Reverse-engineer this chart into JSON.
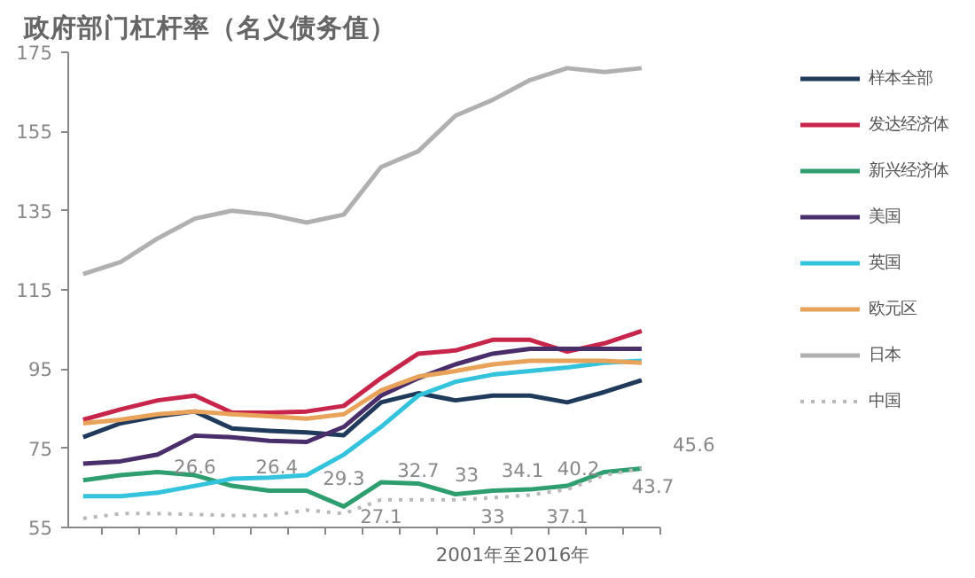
{
  "chart_data": {
    "type": "line",
    "title": "政府部门杠杆率（名义债务值）",
    "xlabel": "2001年至2016年",
    "categories": [
      null,
      null,
      null,
      null,
      null,
      null,
      null,
      null,
      null,
      null,
      null,
      null,
      null,
      null,
      null,
      null
    ],
    "ylim": [
      55,
      175
    ],
    "yticks": [
      55,
      75,
      95,
      115,
      135,
      155,
      175
    ],
    "legend": "right",
    "series": [
      {
        "name": "样本全部",
        "color": "#1f3a5a",
        "values": [
          77.8,
          81.3,
          83.1,
          84.3,
          80,
          79.4,
          79,
          78.3,
          86.6,
          88.9,
          87.1,
          88.3,
          88.3,
          86.6,
          89.2,
          92.2
        ]
      },
      {
        "name": "发达经济体",
        "color": "#c8254a",
        "values": [
          82.2,
          84.8,
          87.1,
          88.3,
          84,
          84,
          84.3,
          85.7,
          92.7,
          98.9,
          99.7,
          102.4,
          102.4,
          99.4,
          101.5,
          104.6
        ]
      },
      {
        "name": "新兴经济体",
        "color": "#2e9e6e",
        "values": [
          66.9,
          68.2,
          69,
          68.2,
          65.5,
          64.3,
          64.3,
          60.3,
          66.4,
          66.1,
          63.4,
          64.3,
          64.6,
          65.5,
          69,
          69.9
        ]
      },
      {
        "name": "美国",
        "color": "#4a2d6b",
        "values": [
          71.1,
          71.7,
          73.4,
          78.2,
          77.8,
          76.9,
          76.6,
          80.4,
          88.3,
          92.7,
          96.2,
          98.9,
          100.1,
          100.1,
          100.1,
          100.1
        ]
      },
      {
        "name": "英国",
        "color": "#33c3dc",
        "values": [
          62.9,
          62.9,
          63.8,
          65.5,
          67.3,
          67.6,
          68.2,
          73.4,
          80.4,
          88.3,
          91.8,
          93.6,
          94.5,
          95.4,
          96.6,
          97.1
        ]
      },
      {
        "name": "欧元区",
        "color": "#e8a25a",
        "values": [
          81.3,
          82.2,
          83.6,
          84.3,
          83.6,
          83.1,
          82.5,
          83.6,
          89.6,
          93.1,
          94.5,
          96.2,
          97.1,
          97.1,
          97.1,
          96.6
        ]
      },
      {
        "name": "日本",
        "color": "#b0b0b0",
        "values": [
          119,
          122,
          128,
          133,
          135,
          134,
          132,
          134,
          146,
          150,
          159,
          163,
          168,
          171,
          170,
          171
        ]
      },
      {
        "name": "中国",
        "color": "#b8b8b8",
        "line_style": "dotted",
        "values": [
          57.3,
          58.5,
          58.5,
          58.3,
          58,
          58,
          59.4,
          58.5,
          62,
          62,
          62,
          62.5,
          63.2,
          64.6,
          68.2,
          69.9
        ]
      }
    ],
    "annotations": [
      "26.6",
      "26.4",
      "29.3",
      "27.1",
      "32.7",
      "33",
      "33",
      "34.1",
      "40.2",
      "37.1",
      "43.7",
      "45.6"
    ]
  }
}
